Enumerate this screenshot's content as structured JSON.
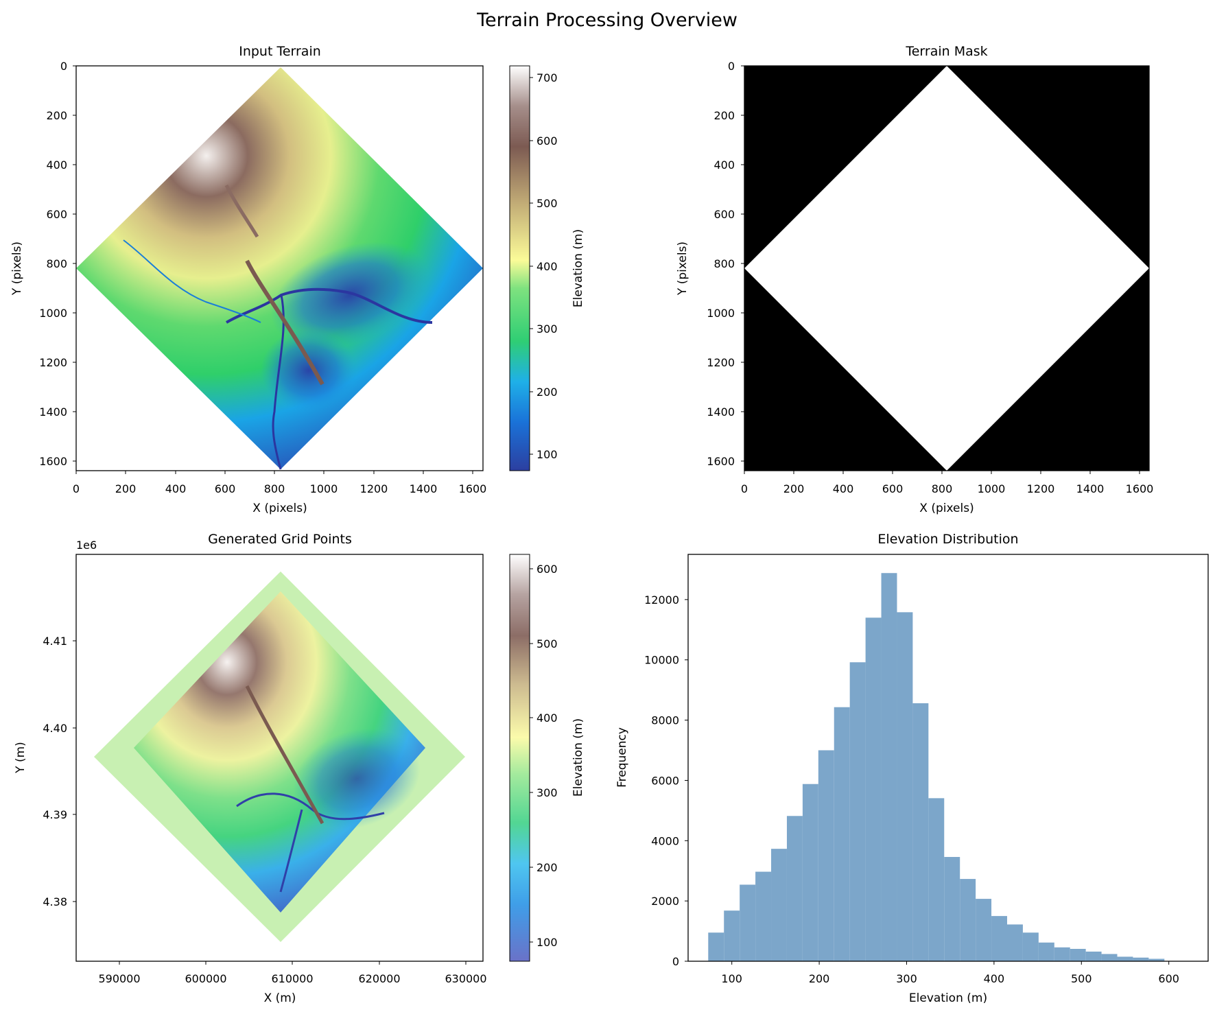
{
  "figure": {
    "title": "Terrain Processing Overview"
  },
  "chart_data": [
    {
      "type": "heatmap",
      "title": "Input Terrain",
      "xlabel": "X (pixels)",
      "ylabel": "Y (pixels)",
      "xlim": [
        0,
        1640
      ],
      "ylim": [
        1640,
        0
      ],
      "xticks": [
        "0",
        "200",
        "400",
        "600",
        "800",
        "1000",
        "1200",
        "1400",
        "1600"
      ],
      "yticks": [
        "0",
        "200",
        "400",
        "600",
        "800",
        "1000",
        "1200",
        "1400",
        "1600"
      ],
      "colormap": "terrain",
      "colorbar": {
        "label": "Elevation (m)",
        "range": [
          70,
          715
        ],
        "ticks": [
          "100",
          "200",
          "300",
          "400",
          "500",
          "600",
          "700"
        ]
      }
    },
    {
      "type": "heatmap",
      "title": "Terrain Mask",
      "xlabel": "X (pixels)",
      "ylabel": "Y (pixels)",
      "xlim": [
        0,
        1640
      ],
      "ylim": [
        1640,
        0
      ],
      "xticks": [
        "0",
        "200",
        "400",
        "600",
        "800",
        "1000",
        "1200",
        "1400",
        "1600"
      ],
      "yticks": [
        "0",
        "200",
        "400",
        "600",
        "800",
        "1000",
        "1200",
        "1400",
        "1600"
      ],
      "colormap": "gray",
      "colors": {
        "masked": "#000000",
        "valid": "#ffffff"
      }
    },
    {
      "type": "scatter",
      "title": "Generated Grid Points",
      "xlabel": "X (m)",
      "ylabel": "Y (m)",
      "offset_label": "1e6",
      "xlim": [
        585000,
        632000
      ],
      "ylim": [
        4373500,
        4419000
      ],
      "xticks": [
        "590000",
        "600000",
        "610000",
        "620000",
        "630000"
      ],
      "yticks": [
        "4.38",
        "4.39",
        "4.40",
        "4.41"
      ],
      "colormap": "terrain",
      "colorbar": {
        "label": "Elevation (m)",
        "range": [
          75,
          620
        ],
        "ticks": [
          "100",
          "200",
          "300",
          "400",
          "500",
          "600"
        ]
      }
    },
    {
      "type": "bar",
      "title": "Elevation Distribution",
      "xlabel": "Elevation (m)",
      "ylabel": "Frequency",
      "xlim": [
        50,
        645
      ],
      "ylim": [
        0,
        13500
      ],
      "xticks": [
        "100",
        "200",
        "300",
        "400",
        "500",
        "600"
      ],
      "yticks": [
        "0",
        "2000",
        "4000",
        "6000",
        "8000",
        "10000",
        "12000"
      ],
      "bar_color": "#7ca6ca",
      "bin_start": 73,
      "bin_width": 18,
      "values": [
        950,
        1680,
        2540,
        2970,
        3730,
        4820,
        5880,
        7000,
        8430,
        9920,
        11400,
        12880,
        11580,
        8560,
        5410,
        3460,
        2730,
        2070,
        1500,
        1220,
        950,
        620,
        460,
        410,
        320,
        240,
        150,
        120,
        80
      ]
    }
  ]
}
